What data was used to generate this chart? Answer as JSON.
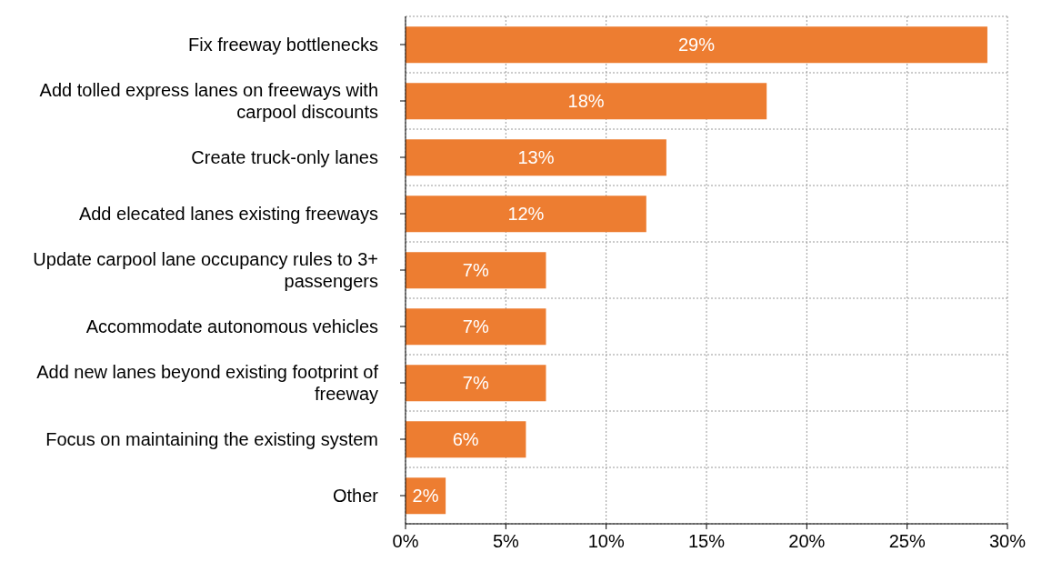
{
  "chart_data": {
    "type": "bar",
    "orientation": "horizontal",
    "categories": [
      "Fix freeway bottlenecks",
      "Add tolled express lanes on freeways with carpool discounts",
      "Create truck-only lanes",
      "Add elecated lanes existing freeways",
      "Update carpool lane occupancy rules to 3+ passengers",
      "Accommodate autonomous vehicles",
      "Add new lanes beyond existing footprint of freeway",
      "Focus on maintaining the existing system",
      "Other"
    ],
    "values": [
      29,
      18,
      13,
      12,
      7,
      7,
      7,
      6,
      2
    ],
    "value_labels": [
      "29%",
      "18%",
      "13%",
      "12%",
      "7%",
      "7%",
      "7%",
      "6%",
      "2%"
    ],
    "color": "#ed7d31",
    "xlim": [
      0,
      30
    ],
    "xticks": [
      {
        "value": 0,
        "label": "0%"
      },
      {
        "value": 5,
        "label": "5%"
      },
      {
        "value": 10,
        "label": "10%"
      },
      {
        "value": 15,
        "label": "15%"
      },
      {
        "value": 20,
        "label": "20%"
      },
      {
        "value": 25,
        "label": "25%"
      },
      {
        "value": 30,
        "label": "30%"
      }
    ],
    "grid": true
  }
}
